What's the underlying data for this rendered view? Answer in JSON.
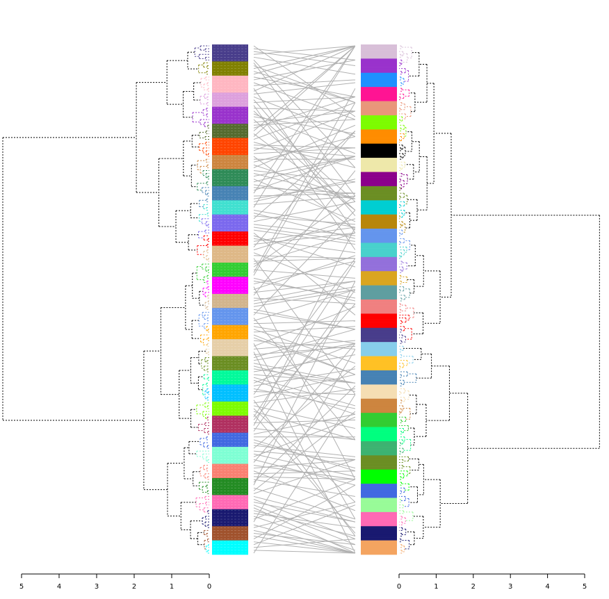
{
  "figure": {
    "type": "tanglegram",
    "left_axis": {
      "ticks": [
        "5",
        "4",
        "3",
        "2",
        "1",
        "0"
      ],
      "values": [
        5,
        4,
        3,
        2,
        1,
        0
      ]
    },
    "right_axis": {
      "ticks": [
        "0",
        "1",
        "2",
        "3",
        "4",
        "5"
      ],
      "values": [
        0,
        1,
        2,
        3,
        4,
        5
      ]
    },
    "connector_color": "#b0b0b0",
    "dendrogram_line_style": "dotted",
    "left_cluster_colors": [
      "#483d8b",
      "#808000",
      "#ffb6c1",
      "#dda0dd",
      "#9932cc",
      "#556b2f",
      "#ff4500",
      "#cd853f",
      "#2e8b57",
      "#4682b4",
      "#40e0d0",
      "#7b68ee",
      "#ff0000",
      "#deb887",
      "#32cd32",
      "#ff00ff",
      "#d2b48c",
      "#6495ed",
      "#ffa500",
      "#e6cfa8",
      "#6b8e23",
      "#00fa9a",
      "#00bfff",
      "#7cfc00",
      "#b03060",
      "#4169e1",
      "#7fffd4",
      "#fa8072",
      "#228b22",
      "#ff69b4",
      "#191970",
      "#a0522d",
      "#00ffff"
    ],
    "right_cluster_colors": [
      "#d8bfd8",
      "#9932cc",
      "#1e90ff",
      "#ff1493",
      "#e9967a",
      "#7cfc00",
      "#ff8c00",
      "#000000",
      "#eee8aa",
      "#8b008b",
      "#6b8e23",
      "#00ced1",
      "#b8860b",
      "#6495ed",
      "#48d1cc",
      "#9370db",
      "#daa520",
      "#5f9ea0",
      "#f08080",
      "#ff0000",
      "#483d8b",
      "#87ceeb",
      "#ffc125",
      "#4682b4",
      "#f5deb3",
      "#cd853f",
      "#32cd32",
      "#00ff7f",
      "#3cb371",
      "#6b8e23",
      "#00ff00",
      "#4169e1",
      "#98fb98",
      "#ff69b4",
      "#191970",
      "#f4a460"
    ]
  }
}
